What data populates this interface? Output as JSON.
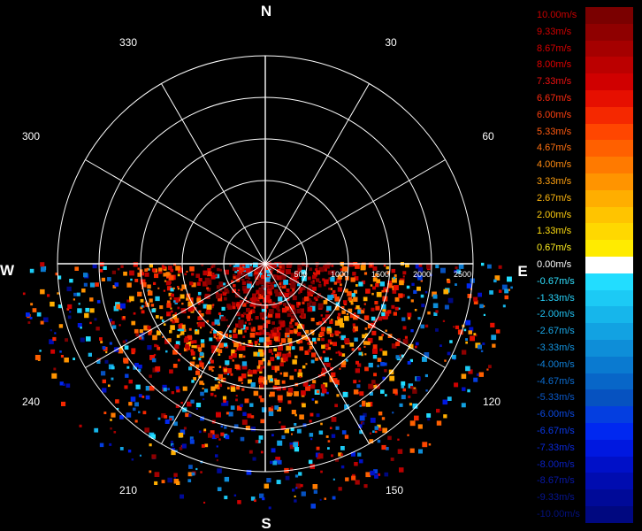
{
  "compass": {
    "north": "N",
    "south": "S",
    "east": "E",
    "west": "W",
    "azimuths": {
      "a30": "30",
      "a60": "60",
      "a120": "120",
      "a150": "150",
      "a210": "210",
      "a240": "240",
      "a300": "300",
      "a330": "330"
    }
  },
  "range_rings": [
    "500",
    "1000",
    "1500",
    "2000",
    "2500"
  ],
  "legend": {
    "items": [
      {
        "label": "10.00m/s",
        "color": "#7a0000",
        "text_color": "#c80000"
      },
      {
        "label": "9.33m/s",
        "color": "#8f0000",
        "text_color": "#d00000"
      },
      {
        "label": "8.67m/s",
        "color": "#a50000",
        "text_color": "#d80000"
      },
      {
        "label": "8.00m/s",
        "color": "#bb0000",
        "text_color": "#e00000"
      },
      {
        "label": "7.33m/s",
        "color": "#d00000",
        "text_color": "#ee1010"
      },
      {
        "label": "6.67m/s",
        "color": "#e60f00",
        "text_color": "#ff2a10"
      },
      {
        "label": "6.00m/s",
        "color": "#f52800",
        "text_color": "#ff4010"
      },
      {
        "label": "5.33m/s",
        "color": "#ff4600",
        "text_color": "#ff5a10"
      },
      {
        "label": "4.67m/s",
        "color": "#ff6000",
        "text_color": "#ff7010"
      },
      {
        "label": "4.00m/s",
        "color": "#ff7a00",
        "text_color": "#ff8a10"
      },
      {
        "label": "3.33m/s",
        "color": "#ff9400",
        "text_color": "#ffa010"
      },
      {
        "label": "2.67m/s",
        "color": "#ffae00",
        "text_color": "#ffb810"
      },
      {
        "label": "2.00m/s",
        "color": "#ffc400",
        "text_color": "#ffcc10"
      },
      {
        "label": "1.33m/s",
        "color": "#ffd800",
        "text_color": "#ffdd10"
      },
      {
        "label": "0.67m/s",
        "color": "#ffeb00",
        "text_color": "#ffee20"
      },
      {
        "label": "0.00m/s",
        "color": "#ffffff",
        "text_color": "#ffffff"
      },
      {
        "label": "-0.67m/s",
        "color": "#22ddff",
        "text_color": "#30e0ff"
      },
      {
        "label": "-1.33m/s",
        "color": "#1ccaf5",
        "text_color": "#28d0f8"
      },
      {
        "label": "-2.00m/s",
        "color": "#16b6eb",
        "text_color": "#20c0f0"
      },
      {
        "label": "-2.67m/s",
        "color": "#12a2e2",
        "text_color": "#1aa8e8"
      },
      {
        "label": "-3.33m/s",
        "color": "#0e8ed8",
        "text_color": "#1494e0"
      },
      {
        "label": "-4.00m/s",
        "color": "#0a7ad0",
        "text_color": "#1080d8"
      },
      {
        "label": "-4.67m/s",
        "color": "#0866c8",
        "text_color": "#0c6cd0"
      },
      {
        "label": "-5.33m/s",
        "color": "#0652c0",
        "text_color": "#0a58c8"
      },
      {
        "label": "-6.00m/s",
        "color": "#043ee0",
        "text_color": "#0a48e0"
      },
      {
        "label": "-6.67m/s",
        "color": "#0028f0",
        "text_color": "#0a38e8"
      },
      {
        "label": "-7.33m/s",
        "color": "#0018e0",
        "text_color": "#0a28d8"
      },
      {
        "label": "-8.00m/s",
        "color": "#0010c8",
        "text_color": "#0a20c0"
      },
      {
        "label": "-8.67m/s",
        "color": "#000cb0",
        "text_color": "#0818a8"
      },
      {
        "label": "-9.33m/s",
        "color": "#000a98",
        "text_color": "#061490"
      },
      {
        "label": "-10.00m/s",
        "color": "#000880",
        "text_color": "#04107c"
      }
    ]
  }
}
